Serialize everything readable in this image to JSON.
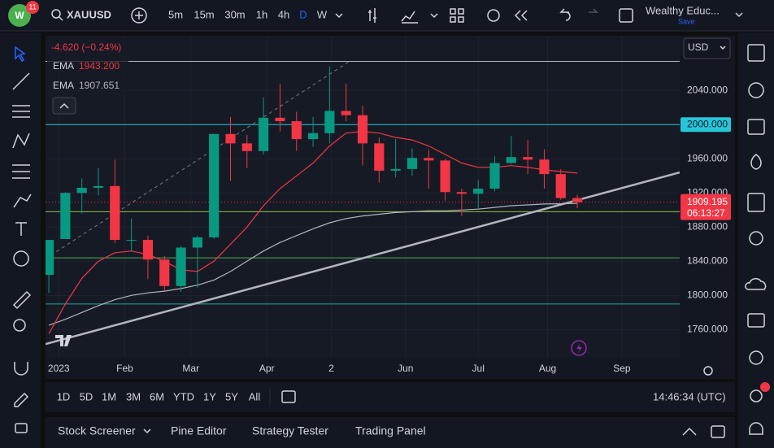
{
  "toolbar": {
    "badge": "11",
    "symbol": "XAUUSD",
    "timeframes": [
      "5m",
      "15m",
      "30m",
      "1h",
      "4h",
      "D",
      "W"
    ],
    "layout_name": "Wealthy Educ...",
    "save": "Save"
  },
  "chart": {
    "type": "candlestick",
    "currency": "USD",
    "change": "-4.620 (−0.24%)",
    "indicators": [
      {
        "name": "EMA",
        "value": "1943.200",
        "color": "#f23645"
      },
      {
        "name": "EMA",
        "value": "1907.651",
        "color": "#b2b5be"
      }
    ],
    "up_color": "#089981",
    "down_color": "#f23645",
    "candles": {
      "open": [
        1824,
        1866,
        1920,
        1926,
        1928,
        1865,
        1865,
        1842,
        1811,
        1856,
        1868,
        1989,
        1978,
        1969,
        2008,
        2004,
        1983,
        1990,
        2016,
        2011,
        1978,
        1946,
        1948,
        1961,
        1958,
        1921,
        1919,
        1925,
        1955,
        1962,
        1959,
        1942,
        1914
      ],
      "high": [
        1865,
        1921,
        1937,
        1949,
        1959,
        1890,
        1870,
        1846,
        1858,
        1870,
        1989,
        2009,
        1988,
        2032,
        2048,
        2015,
        2009,
        2068,
        2048,
        2022,
        1985,
        1983,
        1972,
        1971,
        1960,
        1925,
        1935,
        1963,
        1987,
        1982,
        1971,
        1948,
        1918
      ],
      "low": [
        1803,
        1866,
        1896,
        1917,
        1861,
        1852,
        1819,
        1805,
        1804,
        1809,
        1866,
        1934,
        1949,
        1965,
        1992,
        1969,
        1974,
        1978,
        2004,
        1952,
        1932,
        1938,
        1940,
        1925,
        1911,
        1893,
        1902,
        1922,
        1954,
        1942,
        1925,
        1912,
        1902
      ],
      "close": [
        1865,
        1920,
        1926,
        1928,
        1865,
        1865,
        1842,
        1811,
        1856,
        1868,
        1989,
        1978,
        1969,
        2008,
        2004,
        1983,
        1990,
        2016,
        2011,
        1978,
        1946,
        1948,
        1961,
        1958,
        1921,
        1919,
        1925,
        1955,
        1962,
        1959,
        1942,
        1914,
        1909.195
      ]
    },
    "ema_fast": [
      1755,
      1790,
      1820,
      1840,
      1850,
      1852,
      1848,
      1840,
      1830,
      1828,
      1840,
      1860,
      1880,
      1905,
      1925,
      1940,
      1955,
      1975,
      1990,
      1992,
      1990,
      1985,
      1982,
      1975,
      1965,
      1955,
      1950,
      1950,
      1952,
      1950,
      1947,
      1945,
      1943.2
    ],
    "ema_slow": [
      1765,
      1772,
      1780,
      1788,
      1795,
      1800,
      1803,
      1805,
      1808,
      1812,
      1818,
      1828,
      1840,
      1852,
      1862,
      1870,
      1878,
      1885,
      1890,
      1893,
      1895,
      1897,
      1898,
      1899,
      1899,
      1900,
      1901,
      1903,
      1905,
      1906,
      1907,
      1907.3,
      1907.651
    ],
    "levels": [
      {
        "value": 2074,
        "color": "#b2b5be"
      },
      {
        "value": 2000,
        "color": "#26c6da",
        "label": "2000.000"
      },
      {
        "value": 1898,
        "color": "#8bc34a"
      },
      {
        "value": 1844,
        "color": "#4caf50"
      },
      {
        "value": 1790,
        "color": "#26a69a"
      }
    ],
    "trendlines": [
      {
        "from": [
          -0.2,
          1743
        ],
        "to": [
          38.2,
          1944
        ],
        "color": "#b2b5be",
        "dashed": false
      },
      {
        "from": [
          -0.2,
          1843
        ],
        "to": [
          18.2,
          2074
        ],
        "color": "#787b86",
        "dashed": true
      }
    ],
    "last_price": {
      "value": 1909.195,
      "label": "1909.195"
    },
    "countdown": "06:13:27",
    "xlim": [
      -0.2,
      38.2
    ],
    "ylim": [
      1727,
      2104
    ],
    "yticks": [
      {
        "value": 2040,
        "label": "2040.000"
      },
      {
        "value": 1960,
        "label": "1960.000"
      },
      {
        "value": 1920,
        "label": "1920.000"
      },
      {
        "value": 1880,
        "label": "1880.000"
      },
      {
        "value": 1840,
        "label": "1840.000"
      },
      {
        "value": 1800,
        "label": "1800.000"
      },
      {
        "value": 1760,
        "label": "1760.000"
      }
    ],
    "xticks": [
      {
        "value": 0.6,
        "label": "2023"
      },
      {
        "value": 4.6,
        "label": "Feb"
      },
      {
        "value": 8.6,
        "label": "Mar"
      },
      {
        "value": 13.2,
        "label": "Apr"
      },
      {
        "value": 17.1,
        "label": "2"
      },
      {
        "value": 21.6,
        "label": "Jun"
      },
      {
        "value": 26.0,
        "label": "Jul"
      },
      {
        "value": 30.2,
        "label": "Aug"
      },
      {
        "value": 34.7,
        "label": "Sep"
      }
    ]
  },
  "range_bar": {
    "ranges": [
      "1D",
      "5D",
      "1M",
      "3M",
      "6M",
      "YTD",
      "1Y",
      "5Y",
      "All"
    ],
    "clock": "14:46:34 (UTC)"
  },
  "panel_tabs": [
    "Stock Screener",
    "Pine Editor",
    "Strategy Tester",
    "Trading Panel"
  ]
}
